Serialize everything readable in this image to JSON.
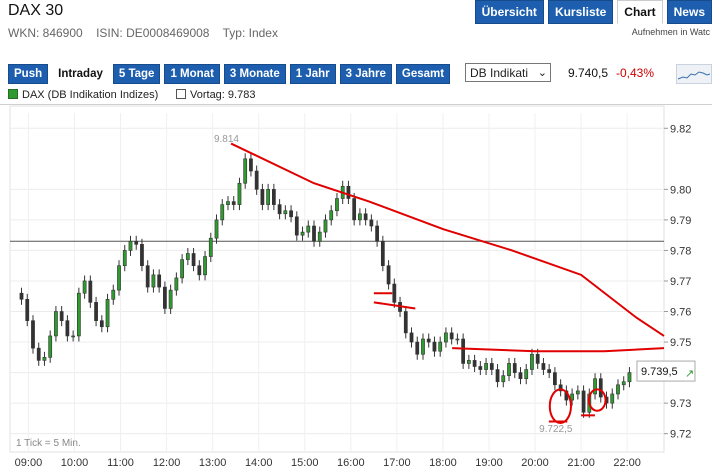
{
  "header": {
    "title": "DAX 30",
    "wkn": "WKN: 846900",
    "isin": "ISIN: DE0008469008",
    "typ": "Typ: Index",
    "nav": [
      "Übersicht",
      "Kursliste",
      "Chart",
      "News"
    ],
    "active_nav": "Chart",
    "watchlist": "Aufnehmen in Watc"
  },
  "toolbar": {
    "periods": [
      "Push",
      "Intraday",
      "5 Tage",
      "1 Monat",
      "3 Monate",
      "1 Jahr",
      "3 Jahre",
      "Gesamt"
    ],
    "active_period": "Intraday",
    "source_select": "DB Indikati",
    "price": "9.740,5",
    "change": "-0,43%"
  },
  "legend": {
    "series": "DAX (DB Indikation Indizes)",
    "prev": "Vortag: 9.783"
  },
  "colors": {
    "nav_blue": "#1d5fae",
    "candle_green": "#2f9a2f",
    "annotation_red": "#e00000",
    "negative": "#cc0000"
  },
  "chart_data": {
    "type": "candlestick",
    "interval_note": "1 Tick = 5 Min.",
    "x_ticks": [
      "09:00",
      "10:00",
      "11:00",
      "12:00",
      "13:00",
      "14:00",
      "15:00",
      "16:00",
      "17:00",
      "18:00",
      "19:00",
      "20:00",
      "21:00",
      "22:00"
    ],
    "x_range": [
      8.6,
      22.8
    ],
    "y_ticks": [
      "9.82",
      "9.80",
      "9.79",
      "9.78",
      "9.77",
      "9.76",
      "9.75",
      "9.74",
      "9.73",
      "9.72"
    ],
    "y_range": [
      9.714,
      9.825
    ],
    "previous_close": 9.783,
    "high_label": "9.814",
    "low_label": "9.722,5",
    "last_label": "9.739,5",
    "close_values": [
      9.764,
      9.757,
      9.748,
      9.744,
      9.745,
      9.752,
      9.76,
      9.757,
      9.752,
      9.752,
      9.766,
      9.77,
      9.763,
      9.757,
      9.755,
      9.764,
      9.767,
      9.775,
      9.78,
      9.783,
      9.782,
      9.775,
      9.768,
      9.772,
      9.768,
      9.761,
      9.767,
      9.771,
      9.777,
      9.779,
      9.775,
      9.772,
      9.778,
      9.784,
      9.79,
      9.795,
      9.796,
      9.795,
      9.802,
      9.81,
      9.806,
      9.8,
      9.795,
      9.8,
      9.795,
      9.792,
      9.793,
      9.791,
      9.785,
      9.786,
      9.788,
      9.783,
      9.786,
      9.79,
      9.793,
      9.797,
      9.801,
      9.797,
      9.79,
      9.792,
      9.79,
      9.788,
      9.783,
      9.775,
      9.769,
      9.763,
      9.76,
      9.753,
      9.75,
      9.746,
      9.751,
      9.75,
      9.747,
      9.75,
      9.753,
      9.751,
      9.751,
      9.743,
      9.744,
      9.742,
      9.741,
      9.743,
      9.741,
      9.737,
      9.739,
      9.743,
      9.74,
      9.738,
      9.741,
      9.746,
      9.743,
      9.741,
      9.74,
      9.736,
      9.734,
      9.731,
      9.733,
      9.734,
      9.727,
      9.733,
      9.738,
      9.732,
      9.73,
      9.733,
      9.736,
      9.737,
      9.74
    ],
    "annotations": {
      "trend_line": [
        [
          13.4,
          9.815
        ],
        [
          15.2,
          9.802
        ],
        [
          16.4,
          9.796
        ],
        [
          18.0,
          9.787
        ],
        [
          19.5,
          9.78
        ],
        [
          21.0,
          9.772
        ],
        [
          22.2,
          9.758
        ],
        [
          22.8,
          9.752
        ]
      ],
      "flat_lines": [
        [
          [
            16.5,
            9.766
          ],
          [
            16.9,
            9.766
          ]
        ],
        [
          [
            16.5,
            9.763
          ],
          [
            17.4,
            9.761
          ]
        ],
        [
          [
            18.2,
            9.748
          ],
          [
            20.0,
            9.747
          ],
          [
            21.5,
            9.747
          ],
          [
            22.8,
            9.748
          ]
        ]
      ],
      "circles": [
        [
          20.55,
          9.729,
          0.23,
          0.0055
        ],
        [
          21.35,
          9.731,
          0.18,
          0.0035
        ]
      ],
      "low_marks": [
        [
          20.5,
          9.724,
          0.4
        ],
        [
          21.15,
          9.726,
          0.3
        ]
      ]
    }
  }
}
